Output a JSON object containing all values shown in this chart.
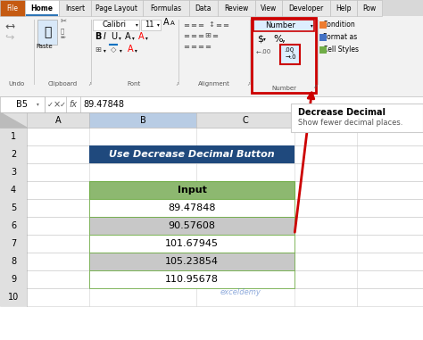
{
  "title": "Use Decrease Decimal Button",
  "title_bg": "#1F497D",
  "title_color": "#FFFFFF",
  "header": "Input",
  "header_bg": "#8DB870",
  "header_color": "#000000",
  "values": [
    "89.47848",
    "90.57608",
    "101.67945",
    "105.23854",
    "110.95678"
  ],
  "row_bg_odd": "#FFFFFF",
  "row_bg_even": "#C8C8C8",
  "cell_text_color": "#000000",
  "excel_bg": "#FFFFFF",
  "formula_bar_text": "89.47848",
  "cell_ref": "B5",
  "tab_names": [
    "File",
    "Home",
    "Insert",
    "Page Layout",
    "Formulas",
    "Data",
    "Review",
    "View",
    "Developer",
    "Help",
    "Pow"
  ],
  "active_tab": "Home",
  "number_box_color": "#CC0000",
  "tooltip_title": "Decrease Decimal",
  "tooltip_body": "Show fewer decimal places.",
  "watermark": "exceldemy",
  "arrow_color": "#CC0000",
  "ribbon_bg": "#F2F2F2",
  "tab_bar_bg": "#D8D8D8",
  "active_tab_color": "#FFFFFF",
  "file_tab_color": "#C55A11",
  "col_header_bg": "#E0E0E0",
  "col_b_header_bg": "#B8CCE4",
  "row_header_bg": "#E0E0E0",
  "grid_line_color": "#D0D0D0",
  "table_border_color": "#70AD47"
}
